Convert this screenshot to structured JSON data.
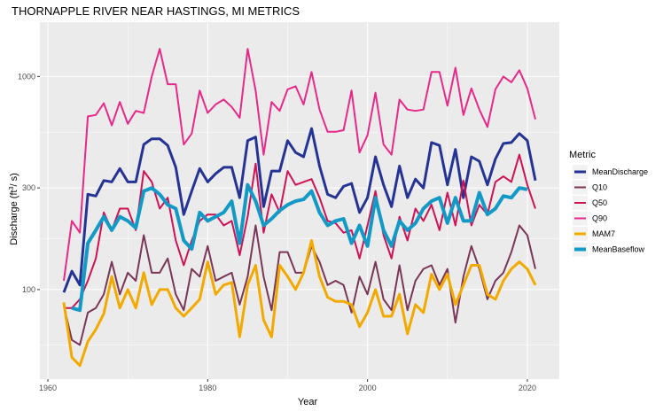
{
  "chart_data": {
    "type": "line",
    "title": "THORNAPPLE RIVER NEAR HASTINGS, MI  METRICS",
    "xlabel": "Year",
    "ylabel": "Discharge (ft³/ s)",
    "ylabel_main": "Discharge (ft",
    "ylabel_sup": "3",
    "ylabel_tail": "/ s)",
    "y_scale": "log",
    "xlim": [
      1959,
      2024
    ],
    "ylim": [
      38,
      1800
    ],
    "x_ticks": [
      1960,
      1980,
      2000,
      2020
    ],
    "x_tick_labels": [
      "1960",
      "1980",
      "2000",
      "2020"
    ],
    "y_ticks": [
      100,
      300,
      1000
    ],
    "y_tick_labels": [
      "100",
      "300",
      "1000"
    ],
    "y_minor_ticks": [
      55,
      173,
      548
    ],
    "grid": true,
    "legend_title": "Metric",
    "legend_position": "right",
    "x": [
      1962,
      1963,
      1964,
      1965,
      1966,
      1967,
      1968,
      1969,
      1970,
      1971,
      1972,
      1973,
      1974,
      1975,
      1976,
      1977,
      1978,
      1979,
      1980,
      1981,
      1982,
      1983,
      1984,
      1985,
      1986,
      1987,
      1988,
      1989,
      1990,
      1991,
      1992,
      1993,
      1994,
      1995,
      1996,
      1997,
      1998,
      1999,
      2000,
      2001,
      2002,
      2003,
      2004,
      2005,
      2006,
      2007,
      2008,
      2009,
      2010,
      2011,
      2012,
      2013,
      2014,
      2015,
      2016,
      2017,
      2018,
      2019,
      2020,
      2021
    ],
    "series": [
      {
        "name": "MeanDischarge",
        "color": "#253494",
        "width": 3,
        "values": [
          97,
          122,
          105,
          280,
          275,
          325,
          320,
          370,
          320,
          320,
          480,
          510,
          510,
          475,
          375,
          225,
          290,
          370,
          320,
          350,
          375,
          375,
          270,
          500,
          520,
          245,
          360,
          360,
          500,
          440,
          420,
          570,
          380,
          280,
          270,
          305,
          315,
          230,
          270,
          420,
          310,
          245,
          380,
          270,
          330,
          300,
          490,
          475,
          310,
          455,
          270,
          420,
          400,
          310,
          410,
          485,
          490,
          540,
          500,
          325
        ]
      },
      {
        "name": "Q10",
        "color": "#7a3656",
        "width": 2,
        "values": [
          84,
          58,
          55,
          78,
          82,
          95,
          135,
          95,
          120,
          110,
          180,
          120,
          120,
          140,
          95,
          80,
          125,
          115,
          160,
          110,
          115,
          120,
          85,
          115,
          200,
          115,
          80,
          150,
          150,
          120,
          120,
          160,
          135,
          105,
          110,
          105,
          78,
          115,
          95,
          135,
          90,
          80,
          130,
          80,
          110,
          125,
          130,
          105,
          125,
          70,
          115,
          160,
          125,
          90,
          110,
          120,
          150,
          200,
          180,
          125
        ]
      },
      {
        "name": "Q50",
        "color": "#ce1256",
        "width": 2,
        "values": [
          82,
          82,
          90,
          110,
          140,
          230,
          190,
          240,
          240,
          190,
          360,
          320,
          240,
          270,
          170,
          130,
          170,
          210,
          225,
          225,
          200,
          210,
          145,
          220,
          390,
          185,
          280,
          230,
          360,
          310,
          320,
          330,
          270,
          210,
          205,
          185,
          190,
          140,
          200,
          290,
          180,
          140,
          220,
          170,
          240,
          210,
          250,
          190,
          285,
          200,
          325,
          200,
          250,
          225,
          320,
          340,
          320,
          430,
          310,
          240
        ]
      },
      {
        "name": "Q90",
        "color": "#e7298a",
        "width": 2,
        "values": [
          110,
          210,
          185,
          650,
          660,
          750,
          590,
          760,
          600,
          690,
          675,
          1000,
          1350,
          920,
          920,
          480,
          540,
          860,
          675,
          740,
          780,
          720,
          640,
          1350,
          860,
          430,
          760,
          690,
          870,
          900,
          740,
          1050,
          700,
          550,
          550,
          560,
          860,
          440,
          530,
          840,
          480,
          430,
          780,
          700,
          690,
          700,
          1050,
          1050,
          730,
          1100,
          660,
          880,
          700,
          580,
          870,
          1000,
          940,
          1070,
          880,
          630
        ]
      },
      {
        "name": "MAM7",
        "color": "#f2a900",
        "width": 3,
        "values": [
          87,
          48,
          44,
          57,
          65,
          77,
          115,
          82,
          100,
          82,
          120,
          85,
          100,
          100,
          82,
          75,
          82,
          90,
          135,
          95,
          105,
          108,
          60,
          105,
          130,
          72,
          60,
          130,
          115,
          100,
          120,
          170,
          115,
          92,
          88,
          88,
          85,
          67,
          78,
          100,
          75,
          75,
          95,
          62,
          85,
          78,
          118,
          100,
          118,
          85,
          105,
          130,
          130,
          95,
          90,
          110,
          125,
          135,
          125,
          105
        ]
      },
      {
        "name": "MeanBaseflow",
        "color": "#1399c6",
        "width": 4,
        "values": [
          null,
          82,
          80,
          165,
          190,
          220,
          190,
          220,
          210,
          195,
          290,
          300,
          280,
          250,
          240,
          170,
          155,
          230,
          210,
          220,
          230,
          260,
          165,
          310,
          260,
          200,
          215,
          235,
          250,
          260,
          265,
          290,
          230,
          200,
          210,
          215,
          165,
          200,
          160,
          270,
          190,
          160,
          210,
          190,
          205,
          240,
          260,
          270,
          205,
          270,
          210,
          210,
          285,
          225,
          240,
          275,
          270,
          300,
          295,
          null
        ],
        "values_note": ""
      }
    ]
  }
}
